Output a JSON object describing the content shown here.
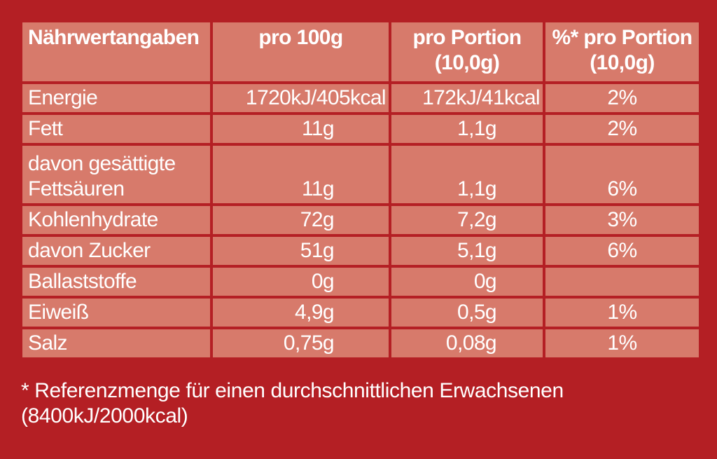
{
  "table": {
    "header": [
      "Nährwertangaben",
      "pro 100g",
      "pro Portion\n(10,0g)",
      "%* pro Portion\n(10,0g)"
    ],
    "rows": [
      [
        "Energie",
        "1720kJ/405kcal",
        "172kJ/41kcal",
        "2%"
      ],
      [
        "Fett",
        "11g",
        "1,1g",
        "2%"
      ],
      [
        "davon gesättigte\nFettsäuren",
        "11g",
        "1,1g",
        "6%"
      ],
      [
        "Kohlenhydrate",
        "72g",
        "7,2g",
        "3%"
      ],
      [
        "davon Zucker",
        "51g",
        "5,1g",
        "6%"
      ],
      [
        "Ballaststoffe",
        "0g",
        "0g",
        ""
      ],
      [
        "Eiweiß",
        "4,9g",
        "0,5g",
        "1%"
      ],
      [
        "Salz",
        "0,75g",
        "0,08g",
        "1%"
      ]
    ]
  },
  "footnote": "* Referenzmenge für einen durchschnittlichen Erwachsenen\n(8400kJ/2000kcal)"
}
